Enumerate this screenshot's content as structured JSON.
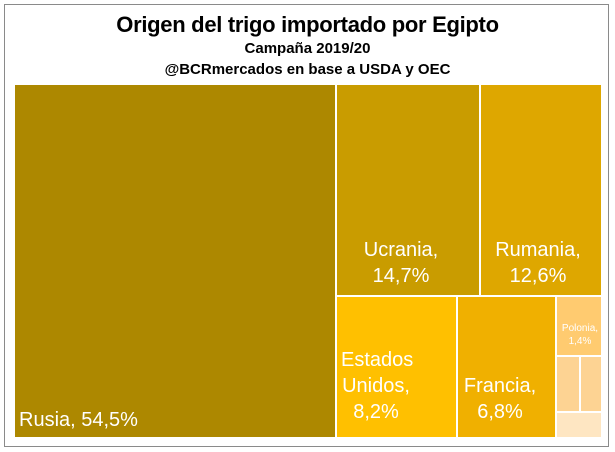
{
  "title": "Origen del trigo importado por Egipto",
  "subtitle": "Campaña 2019/20",
  "source": "@BCRmercados en base a USDA y OEC",
  "chart_data": {
    "type": "treemap",
    "title": "Origen del trigo importado por Egipto",
    "subtitle": "Campaña 2019/20",
    "source": "@BCRmercados en base a USDA y OEC",
    "unit": "%",
    "items": [
      {
        "name": "Rusia",
        "value": 54.5,
        "label": "Rusia, 54,5%",
        "color": "#AD8800"
      },
      {
        "name": "Ucrania",
        "value": 14.7,
        "label": "Ucrania,\n14,7%",
        "color": "#C99C00"
      },
      {
        "name": "Rumania",
        "value": 12.6,
        "label": "Rumania,\n12,6%",
        "color": "#DEA700"
      },
      {
        "name": "Estados Unidos",
        "value": 8.2,
        "label": "Estados\nUnidos,\n8,2%",
        "color": "#FFC000"
      },
      {
        "name": "Francia",
        "value": 6.8,
        "label": "Francia,\n6,8%",
        "color": "#F0B000"
      },
      {
        "name": "Polonia",
        "value": 1.4,
        "label": "Polonia,\n1,4%",
        "color": "#FFCB70"
      },
      {
        "name": "",
        "value": 0.7,
        "label": "",
        "color": "#FDD393"
      },
      {
        "name": "",
        "value": 0.6,
        "label": "",
        "color": "#FDD393"
      },
      {
        "name": "",
        "value": 0.5,
        "label": "",
        "color": "#FEE6C2"
      }
    ]
  }
}
